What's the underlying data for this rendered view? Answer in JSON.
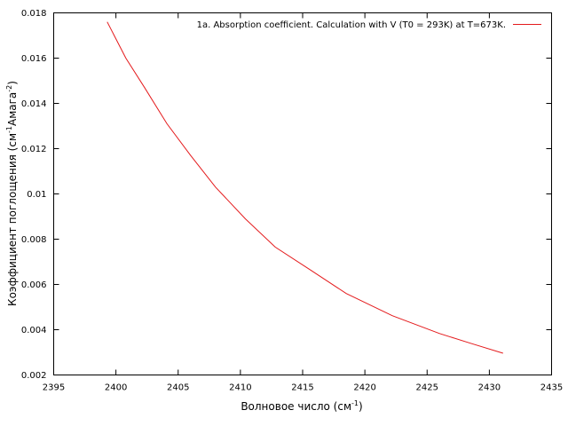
{
  "chart_data": {
    "type": "line",
    "xlabel": "Волновое число (см",
    "xlabel_sup": "-1",
    "xlabel_end": ")",
    "ylabel": "Коэффициент поглощения (см",
    "ylabel_sup1": "-1",
    "ylabel_mid": "Амага",
    "ylabel_sup2": "-2",
    "ylabel_end": ")",
    "xlim": [
      2395,
      2435
    ],
    "ylim": [
      0.002,
      0.018
    ],
    "xticks": [
      2395,
      2400,
      2405,
      2410,
      2415,
      2420,
      2425,
      2430,
      2435
    ],
    "yticks": [
      0.002,
      0.004,
      0.006,
      0.008,
      0.01,
      0.012,
      0.014,
      0.016,
      0.018
    ],
    "ytick_labels": [
      "0.002",
      "0.004",
      "0.006",
      "0.008",
      "0.01",
      "0.012",
      "0.014",
      "0.016",
      "0.018"
    ],
    "grid": false,
    "legend_position": "top-right",
    "series": [
      {
        "name": "1a. Absorption coefficient. Calculation with V (T0 = 293K) at T=673K.",
        "color": "#e41a1c",
        "x": [
          2399.3,
          2400.8,
          2402.3,
          2404.1,
          2406.0,
          2408.0,
          2410.4,
          2412.8,
          2415.6,
          2418.5,
          2422.2,
          2426.0,
          2428.5,
          2431.1
        ],
        "y": [
          0.0176,
          0.016,
          0.0147,
          0.0131,
          0.0117,
          0.0103,
          0.0089,
          0.00765,
          0.00665,
          0.0056,
          0.00462,
          0.00383,
          0.0034,
          0.00296
        ]
      }
    ]
  }
}
